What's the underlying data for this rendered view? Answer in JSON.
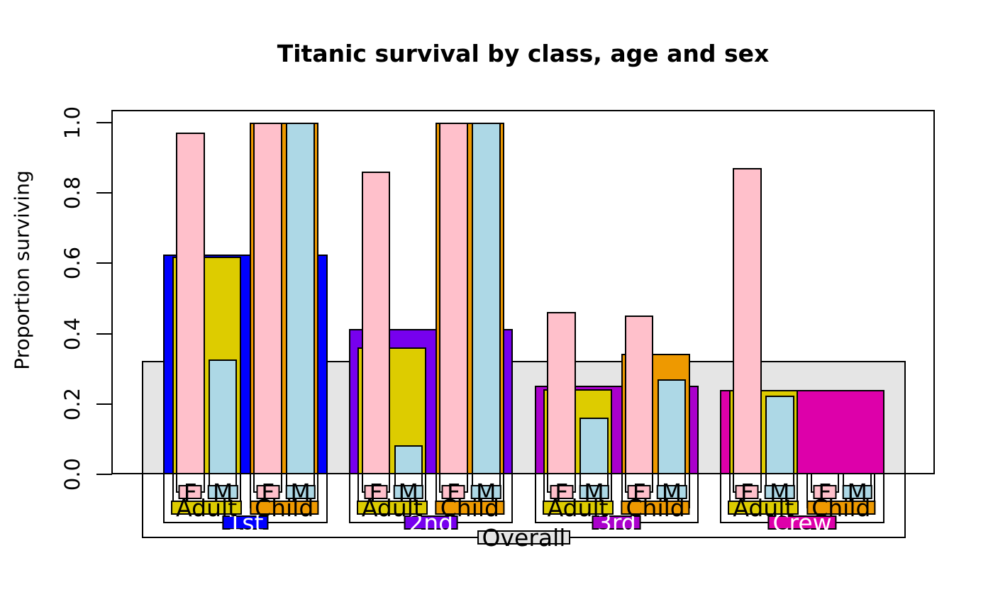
{
  "figure": {
    "background": "#FFFFFF"
  },
  "chart_data": {
    "type": "bar",
    "subtype": "nested_proportion_bars",
    "title": "Titanic survival by class, age and sex",
    "xlabel": "",
    "ylabel": "Proportion surviving",
    "ylim": [
      0,
      1
    ],
    "grid": false,
    "legend_position": "none",
    "yticks": [
      {
        "value": 0.0,
        "label": "0.0"
      },
      {
        "value": 0.2,
        "label": "0.2"
      },
      {
        "value": 0.4,
        "label": "0.4"
      },
      {
        "value": 0.6,
        "label": "0.6"
      },
      {
        "value": 0.8,
        "label": "0.8"
      },
      {
        "value": 1.0,
        "label": "1.0"
      }
    ],
    "palette": {
      "overall": "#E5E5E5",
      "class_1st": "#0000FF",
      "class_2nd": "#7700EE",
      "class_3rd": "#AA00CC",
      "class_crew": "#DD00AA",
      "age_adult": "#DDCC00",
      "age_child": "#EE9900",
      "sex_female": "#FFC0CB",
      "sex_male": "#ADD8E6",
      "bar_border": "#000000",
      "background": "#FFFFFF"
    },
    "tree": {
      "label": "Overall",
      "value": 0.323,
      "color": "#E5E5E5",
      "label_text_color": "#000000",
      "children": [
        {
          "label": "1st",
          "value": 0.625,
          "color": "#0000FF",
          "label_text_color": "#FFFFFF",
          "children": [
            {
              "label": "Adult",
              "value": 0.618,
              "color": "#DDCC00",
              "label_text_color": "#000000",
              "children": [
                {
                  "label": "F",
                  "value": 0.972,
                  "color": "#FFC0CB",
                  "label_text_color": "#000000"
                },
                {
                  "label": "M",
                  "value": 0.326,
                  "color": "#ADD8E6",
                  "label_text_color": "#000000"
                }
              ]
            },
            {
              "label": "Child",
              "value": 1.0,
              "color": "#EE9900",
              "label_text_color": "#000000",
              "children": [
                {
                  "label": "F",
                  "value": 1.0,
                  "color": "#FFC0CB",
                  "label_text_color": "#000000"
                },
                {
                  "label": "M",
                  "value": 1.0,
                  "color": "#ADD8E6",
                  "label_text_color": "#000000"
                }
              ]
            }
          ]
        },
        {
          "label": "2nd",
          "value": 0.414,
          "color": "#7700EE",
          "label_text_color": "#FFFFFF",
          "children": [
            {
              "label": "Adult",
              "value": 0.36,
              "color": "#DDCC00",
              "label_text_color": "#000000",
              "children": [
                {
                  "label": "F",
                  "value": 0.86,
                  "color": "#FFC0CB",
                  "label_text_color": "#000000"
                },
                {
                  "label": "M",
                  "value": 0.083,
                  "color": "#ADD8E6",
                  "label_text_color": "#000000"
                }
              ]
            },
            {
              "label": "Child",
              "value": 1.0,
              "color": "#EE9900",
              "label_text_color": "#000000",
              "children": [
                {
                  "label": "F",
                  "value": 1.0,
                  "color": "#FFC0CB",
                  "label_text_color": "#000000"
                },
                {
                  "label": "M",
                  "value": 1.0,
                  "color": "#ADD8E6",
                  "label_text_color": "#000000"
                }
              ]
            }
          ]
        },
        {
          "label": "3rd",
          "value": 0.252,
          "color": "#AA00CC",
          "label_text_color": "#FFFFFF",
          "children": [
            {
              "label": "Adult",
              "value": 0.241,
              "color": "#DDCC00",
              "label_text_color": "#000000",
              "children": [
                {
                  "label": "F",
                  "value": 0.461,
                  "color": "#FFC0CB",
                  "label_text_color": "#000000"
                },
                {
                  "label": "M",
                  "value": 0.162,
                  "color": "#ADD8E6",
                  "label_text_color": "#000000"
                }
              ]
            },
            {
              "label": "Child",
              "value": 0.342,
              "color": "#EE9900",
              "label_text_color": "#000000",
              "children": [
                {
                  "label": "F",
                  "value": 0.452,
                  "color": "#FFC0CB",
                  "label_text_color": "#000000"
                },
                {
                  "label": "M",
                  "value": 0.271,
                  "color": "#ADD8E6",
                  "label_text_color": "#000000"
                }
              ]
            }
          ]
        },
        {
          "label": "Crew",
          "value": 0.24,
          "color": "#DD00AA",
          "label_text_color": "#FFFFFF",
          "children": [
            {
              "label": "Adult",
              "value": 0.24,
              "color": "#DDCC00",
              "label_text_color": "#000000",
              "children": [
                {
                  "label": "F",
                  "value": 0.87,
                  "color": "#FFC0CB",
                  "label_text_color": "#000000"
                },
                {
                  "label": "M",
                  "value": 0.223,
                  "color": "#ADD8E6",
                  "label_text_color": "#000000"
                }
              ]
            },
            {
              "label": "Child",
              "value": null,
              "color": "#EE9900",
              "label_text_color": "#000000",
              "children": [
                {
                  "label": "F",
                  "value": null,
                  "color": "#FFC0CB",
                  "label_text_color": "#000000"
                },
                {
                  "label": "M",
                  "value": null,
                  "color": "#ADD8E6",
                  "label_text_color": "#000000"
                }
              ]
            }
          ]
        }
      ]
    }
  }
}
